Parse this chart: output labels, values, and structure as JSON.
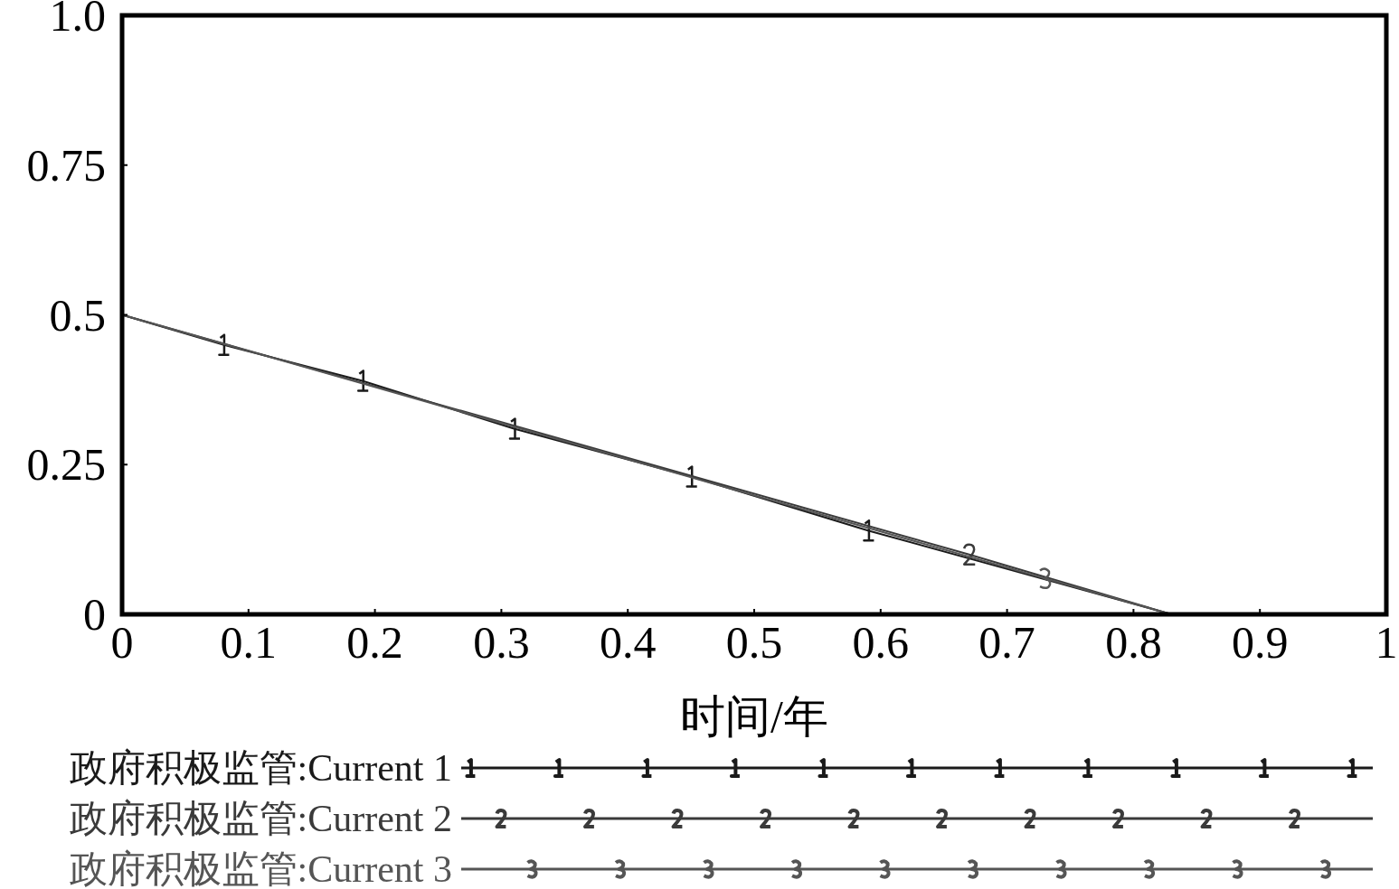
{
  "chart_data": {
    "type": "line",
    "xlabel": "时间/年",
    "xlim": [
      0,
      1
    ],
    "xticks": [
      0,
      0.1,
      0.2,
      0.3,
      0.4,
      0.5,
      0.6,
      0.7,
      0.8,
      0.9,
      1
    ],
    "ylim": [
      0,
      1
    ],
    "yticks": [
      0,
      0.25,
      0.5,
      0.75,
      {
        "value": 1,
        "label": "1.0"
      }
    ],
    "grid": false,
    "legend": "bottom",
    "line_style": "solid",
    "series": [
      {
        "name": "政府积极监管:Current 1",
        "color": "#1a1a1a",
        "x": [
          0,
          0.08,
          0.19,
          0.31,
          0.45,
          0.59,
          0.83
        ],
        "values": [
          0.5,
          0.45,
          0.39,
          0.31,
          0.23,
          0.14,
          0
        ]
      },
      {
        "name": "政府积极监管:Current 2",
        "color": "#3a3a3a",
        "x": [
          0,
          0.67,
          0.83
        ],
        "values": [
          0.5,
          0.1,
          0
        ]
      },
      {
        "name": "政府积极监管:Current 3",
        "color": "#555555",
        "x": [
          0,
          0.73,
          0.83
        ],
        "values": [
          0.5,
          0.06,
          0
        ]
      }
    ]
  }
}
